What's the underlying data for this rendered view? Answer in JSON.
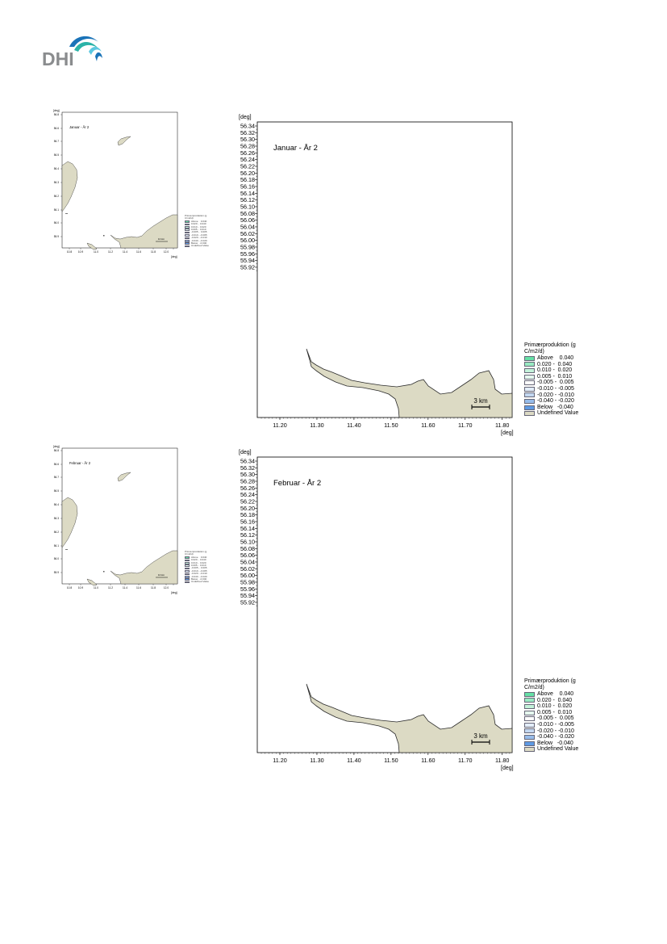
{
  "logo": {
    "text": "DHI"
  },
  "colors": {
    "land": "#dcdac4",
    "land_stroke": "#2b2b2b",
    "frame": "#000000",
    "logo_blue": "#1a73b8",
    "logo_teal": "#2bb3a8"
  },
  "maps": [
    {
      "title": "Januar - År 2",
      "y_unit": "[deg]",
      "x_unit": "[deg]",
      "y_ticks": [
        "56.34",
        "56.32",
        "56.30",
        "56.28",
        "56.26",
        "56.24",
        "56.22",
        "56.20",
        "56.18",
        "56.16",
        "56.14",
        "56.12",
        "56.10",
        "56.08",
        "56.06",
        "56.04",
        "56.02",
        "56.00",
        "55.98",
        "55.96",
        "55.94",
        "55.92"
      ],
      "x_ticks": [
        "11.20",
        "11.30",
        "11.40",
        "11.50",
        "11.60",
        "11.70",
        "11.80"
      ],
      "scale_bar": "3 km",
      "legend_title": "Primærproduktion (g C/m2/d)",
      "thumb_scale_bar": "10 km",
      "thumb_y_unit": "[deg]",
      "thumb_x_unit": "[deg]",
      "thumb_y_ticks": [
        "56.8",
        "56.6",
        "56.7",
        "56.5",
        "56.4",
        "56.3",
        "56.2",
        "56.1",
        "56.0",
        "55.9"
      ],
      "thumb_x_ticks": [
        "10.8",
        "10.9",
        "11.0",
        "11.2",
        "11.4",
        "11.6",
        "11.8",
        "12.0",
        "12.2"
      ]
    },
    {
      "title": "Februar - År 2",
      "y_unit": "[deg]",
      "x_unit": "[deg]",
      "y_ticks": [
        "56.34",
        "56.32",
        "56.30",
        "56.28",
        "56.26",
        "56.24",
        "56.22",
        "56.20",
        "56.18",
        "56.16",
        "56.14",
        "56.12",
        "56.10",
        "56.08",
        "56.06",
        "56.04",
        "56.02",
        "56.00",
        "55.98",
        "55.96",
        "55.94",
        "55.92"
      ],
      "x_ticks": [
        "11.20",
        "11.30",
        "11.40",
        "11.50",
        "11.60",
        "11.70",
        "11.80"
      ],
      "scale_bar": "3 km",
      "legend_title": "Primærproduktion (g C/m2/d)",
      "thumb_scale_bar": "10 km",
      "thumb_y_unit": "[deg]",
      "thumb_x_unit": "[deg]",
      "thumb_y_ticks": [
        "56.8",
        "56.6",
        "56.7",
        "56.5",
        "56.4",
        "56.3",
        "56.2",
        "56.1",
        "56.0",
        "55.9"
      ],
      "thumb_x_ticks": [
        "10.8",
        "10.9",
        "11.0",
        "11.2",
        "11.4",
        "11.6",
        "11.8",
        "12.0",
        "12.2"
      ]
    }
  ],
  "legend_items": [
    {
      "label": "Above    0.040",
      "color": "#66e0a6"
    },
    {
      "label": "0.020 -  0.040",
      "color": "#99eac2"
    },
    {
      "label": "0.010 -  0.020",
      "color": "#c3f2d9"
    },
    {
      "label": "0.005 -  0.010",
      "color": "#e6f9ef"
    },
    {
      "label": "-0.005 -  0.005",
      "color": "#ffffff"
    },
    {
      "label": "-0.010 - -0.005",
      "color": "#e3edf9"
    },
    {
      "label": "-0.020 - -0.010",
      "color": "#c3d7f1"
    },
    {
      "label": "-0.040 - -0.020",
      "color": "#97bcea"
    },
    {
      "label": "Below   -0.040",
      "color": "#5e9ae3"
    },
    {
      "label": "Undefined Value",
      "color": "#dcdac4"
    }
  ]
}
